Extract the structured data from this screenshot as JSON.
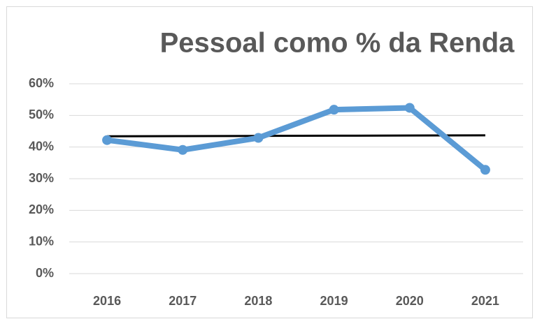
{
  "chart_data": {
    "type": "line",
    "title": "Pessoal como % da Renda",
    "categories": [
      "2016",
      "2017",
      "2018",
      "2019",
      "2020",
      "2021"
    ],
    "series": [
      {
        "color": "#5b9bd5",
        "values": [
          42.2,
          39.1,
          42.9,
          51.8,
          52.4,
          32.8
        ],
        "markers": true
      },
      {
        "color": "#000000",
        "values": [
          43.4,
          43.46,
          43.52,
          43.58,
          43.64,
          43.7
        ],
        "markers": false
      }
    ],
    "ylim": [
      0,
      60
    ],
    "yticks": [
      {
        "value": 0,
        "label": "0%"
      },
      {
        "value": 10,
        "label": "10%"
      },
      {
        "value": 20,
        "label": "20%"
      },
      {
        "value": 30,
        "label": "30%"
      },
      {
        "value": 40,
        "label": "40%"
      },
      {
        "value": 50,
        "label": "50%"
      },
      {
        "value": 60,
        "label": "60%"
      }
    ],
    "grid": true
  }
}
